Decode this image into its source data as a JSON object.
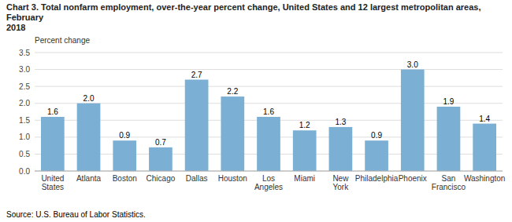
{
  "chart_data": {
    "type": "bar",
    "title": "Chart 3. Total nonfarm employment, over-the-year percent change, United States and 12 largest metropolitan areas, February\n2018",
    "y_label": "Percent change",
    "source": "Source: U.S. Bureau of Labor Statistics.",
    "categories": [
      "United\nStates",
      "Atlanta",
      "Boston",
      "Chicago",
      "Dallas",
      "Houston",
      "Los\nAngeles",
      "Miami",
      "New\nYork",
      "Philadelphia",
      "Phoenix",
      "San\nFrancisco",
      "Washington"
    ],
    "values": [
      1.6,
      2.0,
      0.9,
      0.7,
      2.7,
      2.2,
      1.6,
      1.2,
      1.3,
      0.9,
      3.0,
      1.9,
      1.4
    ],
    "value_labels": [
      "1.6",
      "2.0",
      "0.9",
      "0.7",
      "2.7",
      "2.2",
      "1.6",
      "1.2",
      "1.3",
      "0.9",
      "3.0",
      "1.9",
      "1.4"
    ],
    "data_labels": true,
    "color": "#7BAFD4",
    "ylim": [
      0,
      3.5
    ],
    "yticks": [
      {
        "value": 0.0,
        "label": "0.0"
      },
      0.5,
      {
        "value": 1.0,
        "label": "1.0"
      },
      1.5,
      {
        "value": 2.0,
        "label": "2.0"
      },
      2.5,
      {
        "value": 3.0,
        "label": "3.0"
      },
      3.5
    ],
    "grid": true
  }
}
